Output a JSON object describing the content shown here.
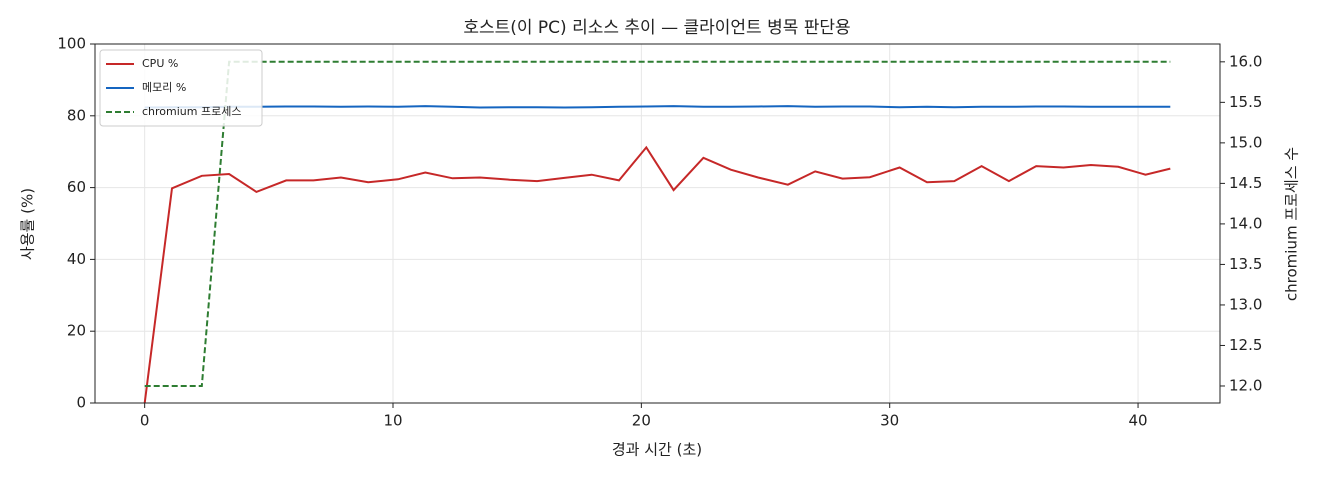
{
  "chart_data": {
    "type": "line",
    "title": "호스트(이 PC) 리소스 추이 — 클라이언트 병목 판단용",
    "x_label": "경과 시간 (초)",
    "y_label": "사용률 (%)",
    "y2_label": "chromium 프로세스 수",
    "x": [
      0,
      1.1,
      2.3,
      3.4,
      4.5,
      5.7,
      6.8,
      7.9,
      9.0,
      10.2,
      11.3,
      12.4,
      13.5,
      14.7,
      15.8,
      16.9,
      18.0,
      19.1,
      20.2,
      21.3,
      22.5,
      23.6,
      24.7,
      25.9,
      27.0,
      28.1,
      29.2,
      30.4,
      31.5,
      32.6,
      33.7,
      34.8,
      35.9,
      37.0,
      38.1,
      39.2,
      40.3,
      41.3
    ],
    "series": [
      {
        "name": "CPU %",
        "color": "#c62828",
        "linestyle": "solid",
        "values": [
          0,
          59.8,
          63.3,
          63.8,
          58.8,
          62.0,
          62.0,
          62.8,
          61.5,
          62.3,
          64.2,
          62.6,
          62.8,
          62.2,
          61.8,
          62.7,
          63.6,
          62.0,
          71.2,
          59.3,
          68.3,
          65.0,
          62.8,
          60.8,
          64.5,
          62.5,
          62.9,
          65.6,
          61.5,
          61.8,
          66.0,
          61.8,
          66.0,
          65.6,
          66.3,
          65.8,
          63.6,
          65.3
        ]
      },
      {
        "name": "메모리 %",
        "color": "#1565c0",
        "linestyle": "solid",
        "values": [
          82.3,
          82.4,
          82.4,
          82.5,
          82.5,
          82.6,
          82.6,
          82.5,
          82.6,
          82.5,
          82.7,
          82.5,
          82.3,
          82.4,
          82.4,
          82.3,
          82.4,
          82.5,
          82.6,
          82.7,
          82.5,
          82.5,
          82.6,
          82.7,
          82.5,
          82.6,
          82.6,
          82.4,
          82.5,
          82.4,
          82.5,
          82.5,
          82.6,
          82.6,
          82.5,
          82.5,
          82.5,
          82.5
        ]
      },
      {
        "name": "chromium 프로세스",
        "color": "#2e7d32",
        "linestyle": "dashed",
        "axis": "y2",
        "values": [
          12,
          12,
          12,
          16,
          16,
          16,
          16,
          16,
          16,
          16,
          16,
          16,
          16,
          16,
          16,
          16,
          16,
          16,
          16,
          16,
          16,
          16,
          16,
          16,
          16,
          16,
          16,
          16,
          16,
          16,
          16,
          16,
          16,
          16,
          16,
          16,
          16,
          16
        ]
      }
    ],
    "xlim": [
      -2.0,
      43.3
    ],
    "xticks": [
      0,
      10,
      20,
      30,
      40
    ],
    "ylim": [
      0,
      100
    ],
    "yticks": [
      0,
      20,
      40,
      60,
      80,
      100
    ],
    "y2lim": [
      11.79,
      16.22
    ],
    "y2ticks": [
      {
        "value": 12,
        "label": "12.0"
      },
      12.5,
      {
        "value": 13,
        "label": "13.0"
      },
      13.5,
      {
        "value": 14,
        "label": "14.0"
      },
      14.5,
      {
        "value": 15,
        "label": "15.0"
      },
      15.5,
      {
        "value": 16,
        "label": "16.0"
      }
    ],
    "grid": true,
    "legend": "upper left"
  }
}
